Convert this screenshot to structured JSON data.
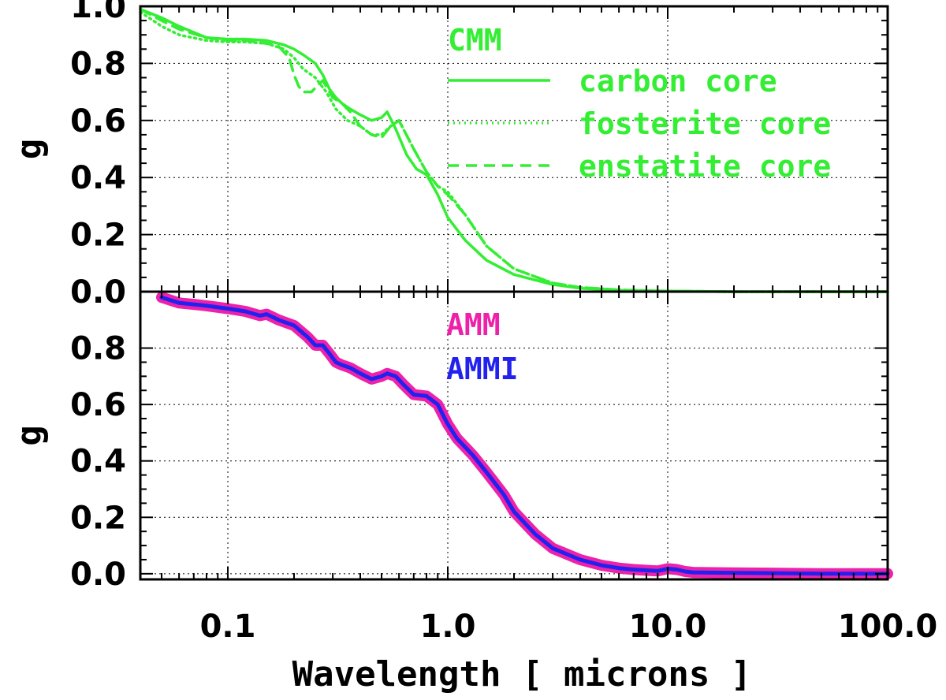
{
  "chart_data": [
    {
      "type": "line",
      "panel": "top",
      "ylabel": "g",
      "xscale": "log",
      "xlim": [
        0.04,
        100.0
      ],
      "ylim": [
        0.0,
        1.0
      ],
      "yticks": [
        "0.0",
        "0.2",
        "0.4",
        "0.6",
        "0.8",
        "1.0"
      ],
      "legend_title": "CMM",
      "legend_color": "#33ee33",
      "series": [
        {
          "name": "carbon core",
          "style": "solid",
          "color": "#33ee33",
          "x": [
            0.04,
            0.05,
            0.06,
            0.08,
            0.1,
            0.12,
            0.15,
            0.18,
            0.2,
            0.22,
            0.25,
            0.27,
            0.29,
            0.31,
            0.33,
            0.36,
            0.4,
            0.45,
            0.5,
            0.53,
            0.58,
            0.65,
            0.72,
            0.8,
            0.9,
            1.0,
            1.2,
            1.5,
            2.0,
            3.0,
            4.0,
            6.0,
            10.0,
            20.0,
            50.0,
            100.0
          ],
          "y": [
            0.99,
            0.96,
            0.93,
            0.89,
            0.885,
            0.885,
            0.88,
            0.865,
            0.85,
            0.83,
            0.8,
            0.76,
            0.71,
            0.68,
            0.66,
            0.64,
            0.62,
            0.6,
            0.61,
            0.63,
            0.57,
            0.48,
            0.43,
            0.41,
            0.34,
            0.26,
            0.18,
            0.11,
            0.06,
            0.025,
            0.012,
            0.005,
            0.002,
            0.0,
            0.0,
            0.0
          ]
        },
        {
          "name": "fosterite core",
          "style": "dotted",
          "color": "#33ee33",
          "x": [
            0.04,
            0.05,
            0.06,
            0.08,
            0.1,
            0.12,
            0.15,
            0.18,
            0.2,
            0.22,
            0.25,
            0.28,
            0.31,
            0.35,
            0.4,
            0.45,
            0.5,
            0.55,
            0.6,
            0.7,
            0.8,
            0.9,
            1.0,
            1.2,
            1.5,
            2.0,
            3.0,
            4.0,
            6.0,
            10.0,
            20.0,
            50.0,
            100.0
          ],
          "y": [
            0.98,
            0.93,
            0.9,
            0.88,
            0.875,
            0.875,
            0.87,
            0.85,
            0.82,
            0.78,
            0.75,
            0.7,
            0.64,
            0.6,
            0.58,
            0.55,
            0.55,
            0.58,
            0.6,
            0.5,
            0.42,
            0.37,
            0.35,
            0.27,
            0.16,
            0.08,
            0.03,
            0.015,
            0.006,
            0.002,
            0.0,
            0.0,
            0.0
          ]
        },
        {
          "name": "enstatite core",
          "style": "dashed",
          "color": "#33ee33",
          "x": [
            0.04,
            0.05,
            0.06,
            0.08,
            0.1,
            0.12,
            0.15,
            0.17,
            0.19,
            0.2,
            0.21,
            0.22,
            0.24,
            0.27,
            0.3,
            0.33,
            0.36,
            0.4,
            0.45,
            0.5,
            0.55,
            0.6,
            0.7,
            0.8,
            0.9,
            1.0,
            1.2,
            1.5,
            2.0,
            3.0,
            4.0,
            6.0,
            10.0,
            20.0,
            50.0,
            100.0
          ],
          "y": [
            0.99,
            0.95,
            0.92,
            0.89,
            0.88,
            0.88,
            0.87,
            0.86,
            0.82,
            0.76,
            0.72,
            0.7,
            0.7,
            0.74,
            0.68,
            0.66,
            0.63,
            0.58,
            0.55,
            0.54,
            0.58,
            0.6,
            0.5,
            0.42,
            0.37,
            0.34,
            0.27,
            0.16,
            0.08,
            0.03,
            0.015,
            0.006,
            0.002,
            0.0,
            0.0,
            0.0
          ]
        }
      ]
    },
    {
      "type": "line",
      "panel": "bottom",
      "ylabel": "g",
      "xlabel": "Wavelength [ microns ]",
      "xscale": "log",
      "xlim": [
        0.04,
        100.0
      ],
      "ylim": [
        -0.02,
        1.0
      ],
      "xticks": [
        "0.1",
        "1.0",
        "10.0",
        "100.0"
      ],
      "yticks": [
        "0.0",
        "0.2",
        "0.4",
        "0.6",
        "0.8"
      ],
      "series": [
        {
          "name": "AMM",
          "color": "#ee22aa",
          "x": [
            0.05,
            0.06,
            0.07,
            0.08,
            0.1,
            0.12,
            0.14,
            0.15,
            0.17,
            0.2,
            0.23,
            0.25,
            0.27,
            0.29,
            0.31,
            0.33,
            0.36,
            0.4,
            0.45,
            0.5,
            0.53,
            0.58,
            0.63,
            0.7,
            0.8,
            0.9,
            1.0,
            1.1,
            1.3,
            1.5,
            1.8,
            2.0,
            2.5,
            3.0,
            4.0,
            5.0,
            6.0,
            7.0,
            8.0,
            9.0,
            10.0,
            11.0,
            12.0,
            13.0,
            15.0,
            20.0,
            30.0,
            50.0,
            100.0
          ],
          "y": [
            0.98,
            0.96,
            0.955,
            0.95,
            0.94,
            0.93,
            0.915,
            0.92,
            0.9,
            0.88,
            0.84,
            0.81,
            0.81,
            0.78,
            0.75,
            0.74,
            0.73,
            0.71,
            0.69,
            0.7,
            0.71,
            0.7,
            0.67,
            0.635,
            0.63,
            0.6,
            0.53,
            0.48,
            0.42,
            0.36,
            0.28,
            0.22,
            0.14,
            0.09,
            0.05,
            0.03,
            0.02,
            0.015,
            0.012,
            0.01,
            0.018,
            0.015,
            0.008,
            0.005,
            0.004,
            0.003,
            0.002,
            0.0,
            0.0
          ]
        },
        {
          "name": "AMMI",
          "color": "#2222ee",
          "x": [
            0.05,
            0.06,
            0.07,
            0.08,
            0.1,
            0.12,
            0.14,
            0.15,
            0.17,
            0.2,
            0.23,
            0.25,
            0.27,
            0.29,
            0.31,
            0.33,
            0.36,
            0.4,
            0.45,
            0.5,
            0.53,
            0.58,
            0.63,
            0.7,
            0.8,
            0.9,
            1.0,
            1.1,
            1.3,
            1.5,
            1.8,
            2.0,
            2.5,
            3.0,
            4.0,
            5.0,
            6.0,
            7.0,
            8.0,
            9.0,
            10.0,
            11.0,
            12.0,
            13.0,
            15.0,
            20.0,
            30.0,
            50.0,
            100.0
          ],
          "y": [
            0.98,
            0.96,
            0.955,
            0.95,
            0.94,
            0.93,
            0.915,
            0.92,
            0.9,
            0.88,
            0.84,
            0.81,
            0.81,
            0.78,
            0.75,
            0.74,
            0.73,
            0.71,
            0.69,
            0.7,
            0.71,
            0.7,
            0.67,
            0.635,
            0.63,
            0.6,
            0.53,
            0.48,
            0.42,
            0.36,
            0.28,
            0.22,
            0.14,
            0.09,
            0.05,
            0.03,
            0.02,
            0.015,
            0.012,
            0.01,
            0.018,
            0.015,
            0.008,
            0.005,
            0.004,
            0.003,
            0.002,
            0.0,
            0.0
          ]
        }
      ]
    }
  ]
}
